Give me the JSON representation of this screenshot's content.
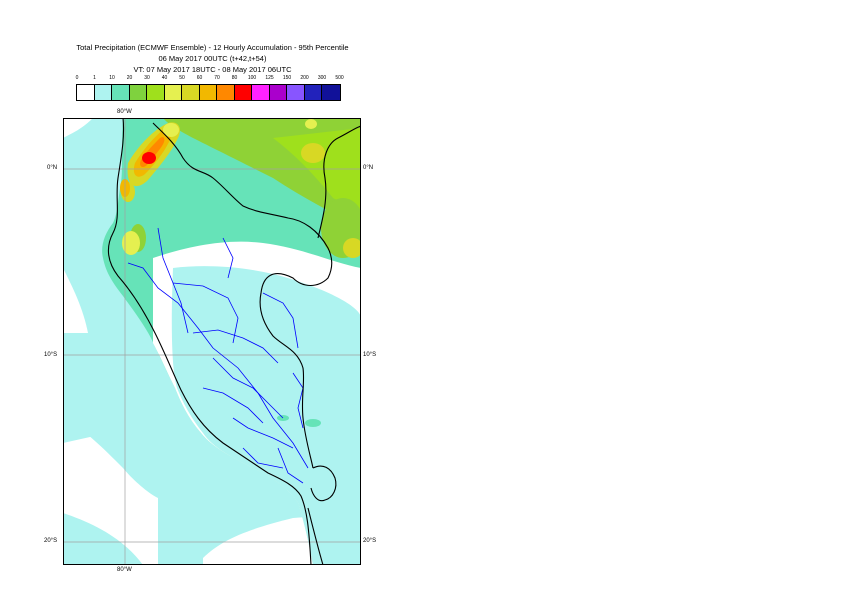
{
  "title": {
    "line1": "Total Precipitation (ECMWF Ensemble) - 12 Hourly Accumulation - 95th Percentile",
    "line2": "06 May 2017 00UTC (t+42,t+54)",
    "line3": "VT: 07 May 2017 18UTC - 08 May 2017 06UTC"
  },
  "legend": {
    "labels": [
      "0",
      "1",
      "10",
      "20",
      "30",
      "40",
      "50",
      "60",
      "70",
      "80",
      "100",
      "125",
      "150",
      "200",
      "300",
      "500"
    ],
    "colors": [
      "#ffffff",
      "#aef3f0",
      "#66e3b8",
      "#7fd23e",
      "#9fe01c",
      "#e5f050",
      "#d8d824",
      "#f2b800",
      "#ff8800",
      "#ff0000",
      "#ff22ff",
      "#aa00cc",
      "#8855ff",
      "#2222bb",
      "#111199",
      "#000055"
    ]
  },
  "axes": {
    "lon_top": "80°W",
    "lon_bottom": "80°W",
    "lat_labels": [
      "0°N",
      "10°S",
      "20°S"
    ]
  },
  "map_colors": {
    "ocean": "#aef3f0",
    "dry": "#ffffff",
    "light_rain": "#66e3b8",
    "moderate_rain": "#8fd236",
    "heavy_rain": "#e5f050",
    "very_heavy": "#f2b800",
    "extreme": "#ff0000",
    "country_border": "#000000",
    "admin_border": "#0000ff",
    "grid": "#a0a0a0"
  }
}
